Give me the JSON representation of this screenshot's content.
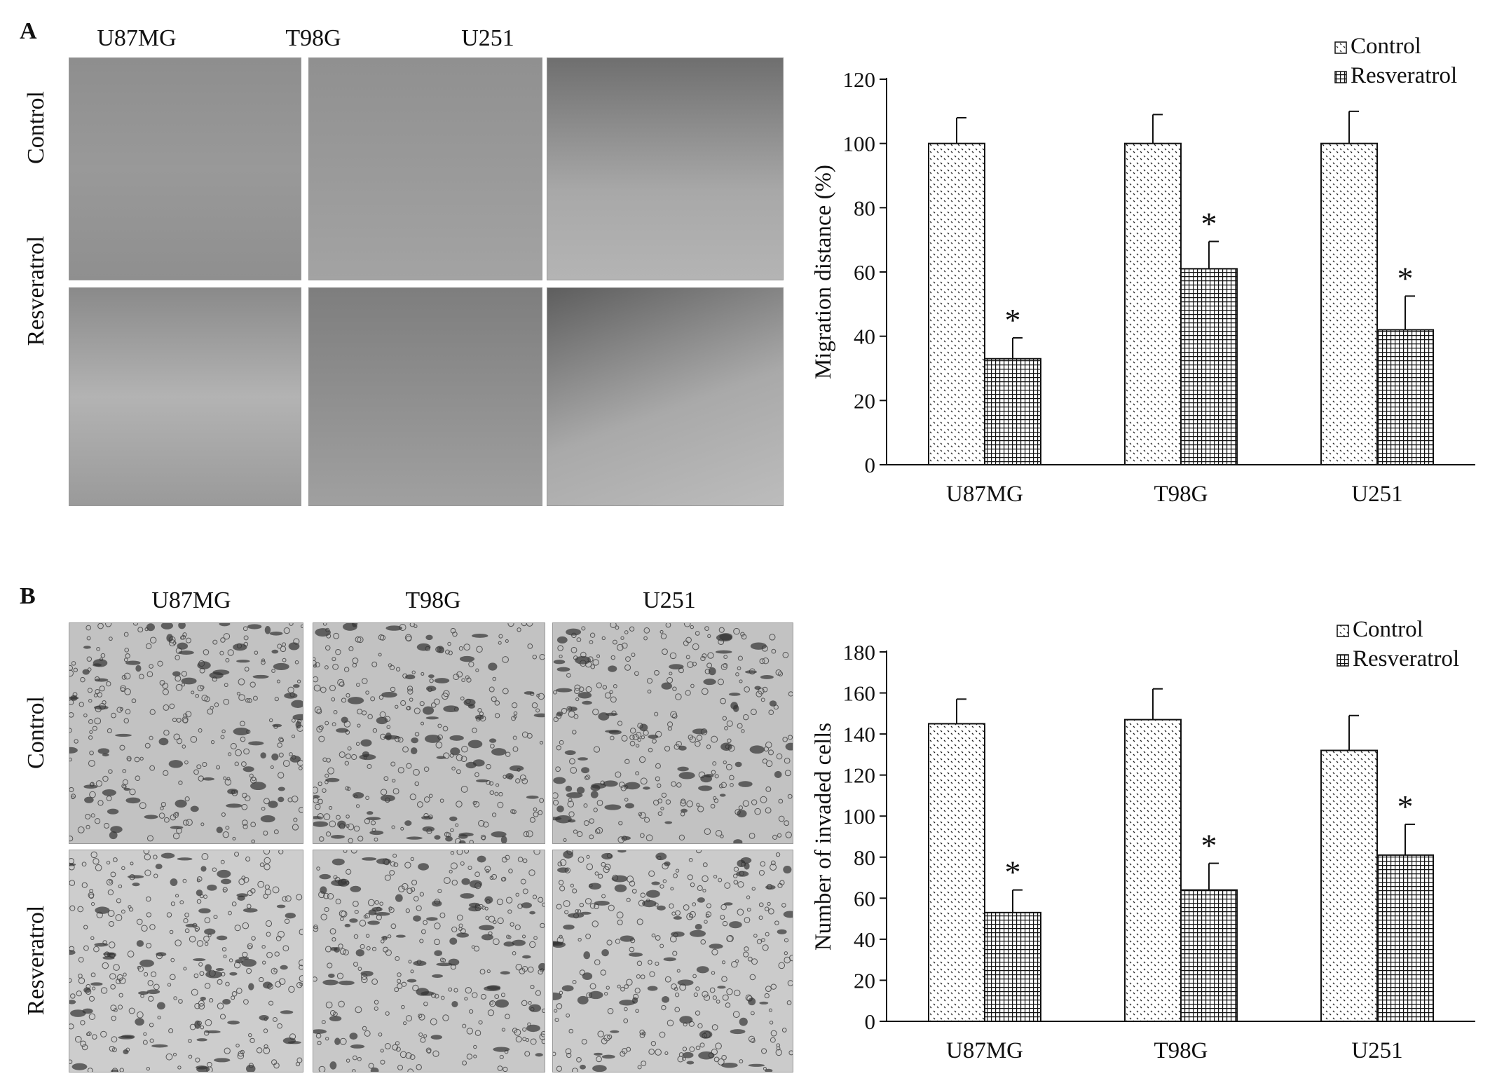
{
  "panels": {
    "a": {
      "letter": "A",
      "columns": [
        "U87MG",
        "T98G",
        "U251"
      ],
      "rows": [
        "Control",
        "Resveratrol"
      ]
    },
    "b": {
      "letter": "B",
      "columns": [
        "U87MG",
        "T98G",
        "U251"
      ],
      "rows": [
        "Control",
        "Resveratrol"
      ]
    }
  },
  "chart_data": [
    {
      "type": "bar",
      "categories": [
        "U87MG",
        "T98G",
        "U251"
      ],
      "series": [
        {
          "name": "Control",
          "values": [
            100,
            100,
            100
          ],
          "errors": [
            8,
            9,
            10
          ],
          "pattern": "dots"
        },
        {
          "name": "Resveratrol",
          "values": [
            33,
            61,
            42
          ],
          "errors": [
            6.5,
            8.5,
            10.5
          ],
          "pattern": "grid"
        }
      ],
      "significance": [
        "*",
        "*",
        "*"
      ],
      "ylabel": "Migration distance (%)",
      "xlabel": "",
      "ylim": [
        0,
        120
      ],
      "yticks": [
        0,
        20,
        40,
        60,
        80,
        100,
        120
      ],
      "legend": "top-right"
    },
    {
      "type": "bar",
      "categories": [
        "U87MG",
        "T98G",
        "U251"
      ],
      "series": [
        {
          "name": "Control",
          "values": [
            145,
            147,
            132
          ],
          "errors": [
            12,
            15,
            17
          ],
          "pattern": "dots"
        },
        {
          "name": "Resveratrol",
          "values": [
            53,
            64,
            81
          ],
          "errors": [
            11,
            13,
            15
          ],
          "pattern": "grid"
        }
      ],
      "significance": [
        "*",
        "*",
        "*"
      ],
      "ylabel": "Number of invaded cells",
      "xlabel": "",
      "ylim": [
        0,
        180
      ],
      "yticks": [
        0,
        20,
        40,
        60,
        80,
        100,
        120,
        140,
        160,
        180
      ],
      "legend": "top-right"
    }
  ]
}
